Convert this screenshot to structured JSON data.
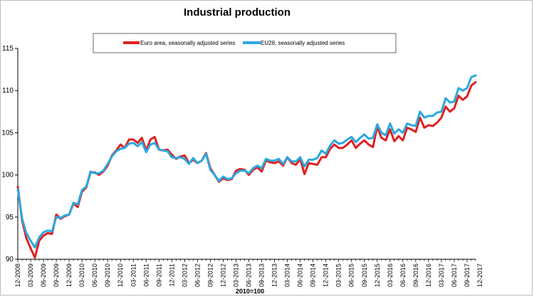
{
  "chart_data": {
    "type": "line",
    "title": "Industrial production",
    "xlabel": "2010=100",
    "ylabel": "",
    "ylim": [
      90,
      115
    ],
    "yticks": [
      90,
      95,
      100,
      105,
      110,
      115
    ],
    "grid": false,
    "legend_position": "top",
    "x_start": "12-2008",
    "tick_labels": [
      "12-2008",
      "03-2009",
      "06-2009",
      "09-2009",
      "12-2009",
      "03-2010",
      "06-2010",
      "09-2010",
      "12-2010",
      "03-2011",
      "06-2011",
      "09-2011",
      "12-2011",
      "03-2012",
      "06-2012",
      "09-2012",
      "12-2012",
      "03-2013",
      "06-2013",
      "09-2013",
      "12-2013",
      "03-2014",
      "06-2014",
      "09-2014",
      "12-2014",
      "03-2015",
      "06-2015",
      "09-2015",
      "12-2015",
      "03-2016",
      "06-2016",
      "09-2016",
      "12-2016",
      "03-2017",
      "06-2017",
      "09-2017",
      "12-2017"
    ],
    "series": [
      {
        "name": "Euro area, seasonally adjusted series",
        "color": "#e02020",
        "values": [
          98.6,
          94.6,
          92.5,
          91.3,
          90.2,
          92.2,
          92.8,
          93.1,
          93.0,
          95.3,
          94.8,
          95.1,
          95.3,
          96.6,
          96.2,
          98.0,
          98.5,
          100.3,
          100.3,
          100.0,
          100.4,
          101.1,
          102.3,
          102.9,
          103.6,
          103.2,
          104.2,
          104.2,
          103.8,
          104.4,
          102.9,
          104.2,
          104.5,
          103.0,
          102.9,
          103.0,
          102.4,
          101.9,
          102.2,
          102.3,
          101.4,
          101.8,
          101.4,
          101.7,
          102.6,
          100.8,
          100.0,
          99.2,
          99.6,
          99.4,
          99.5,
          100.5,
          100.7,
          100.6,
          100.0,
          100.6,
          100.9,
          100.4,
          101.7,
          101.5,
          101.4,
          101.6,
          101.1,
          102.1,
          101.4,
          101.2,
          101.9,
          100.1,
          101.4,
          101.3,
          101.2,
          102.1,
          102.1,
          103.1,
          103.6,
          103.2,
          103.2,
          103.6,
          104.1,
          103.2,
          103.7,
          104.1,
          103.6,
          103.3,
          105.7,
          104.4,
          104.1,
          105.4,
          104.0,
          104.6,
          104.1,
          105.6,
          105.4,
          105.1,
          106.8,
          105.6,
          105.9,
          105.8,
          106.2,
          106.8,
          108.1,
          107.5,
          107.9,
          109.4,
          108.9,
          109.3,
          110.6,
          111.0
        ]
      },
      {
        "name": "EU28, seasonally adjusted series",
        "color": "#2aa8e0",
        "values": [
          98.3,
          94.8,
          93.1,
          92.2,
          91.4,
          92.6,
          93.2,
          93.4,
          93.3,
          95.0,
          94.9,
          95.2,
          95.3,
          96.7,
          96.5,
          98.2,
          98.6,
          100.4,
          100.2,
          100.2,
          100.5,
          101.3,
          102.2,
          102.8,
          103.1,
          103.2,
          103.7,
          103.8,
          103.4,
          103.9,
          102.7,
          103.6,
          103.8,
          103.0,
          102.9,
          102.8,
          102.1,
          102.0,
          102.1,
          101.9,
          101.3,
          102.0,
          101.4,
          101.7,
          102.5,
          100.6,
          100.0,
          99.3,
          99.8,
          99.5,
          99.6,
          100.2,
          100.5,
          100.5,
          100.2,
          100.8,
          101.1,
          100.8,
          101.9,
          101.7,
          101.7,
          101.9,
          101.3,
          102.1,
          101.6,
          101.6,
          102.1,
          101.0,
          101.8,
          101.8,
          102.0,
          102.9,
          102.5,
          103.5,
          104.1,
          103.7,
          103.8,
          104.2,
          104.5,
          103.9,
          104.4,
          104.8,
          104.3,
          104.4,
          106.0,
          105.0,
          104.7,
          106.1,
          104.9,
          105.4,
          105.0,
          106.1,
          105.9,
          105.8,
          107.5,
          106.8,
          107.0,
          107.0,
          107.4,
          107.5,
          109.1,
          108.6,
          108.7,
          110.3,
          110.0,
          110.3,
          111.6,
          111.8
        ]
      }
    ]
  }
}
